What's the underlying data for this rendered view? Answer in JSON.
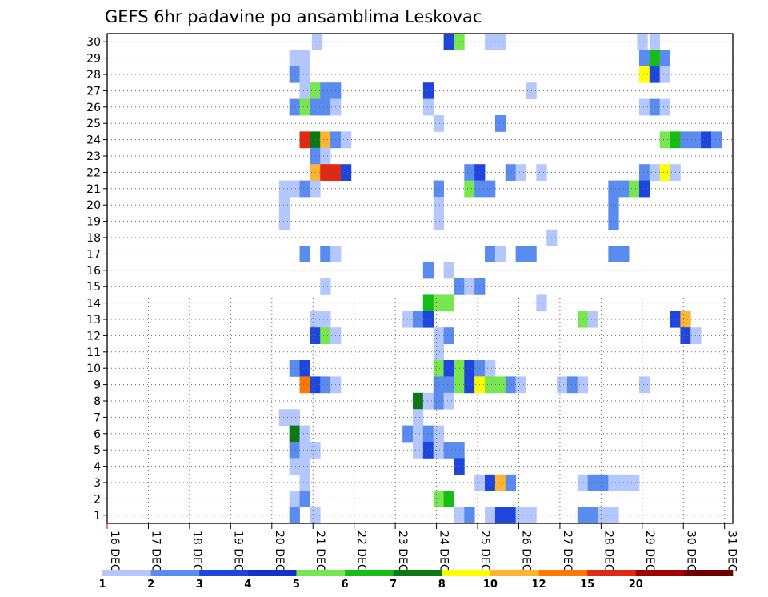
{
  "chart_data": {
    "type": "heatmap",
    "title": "GEFS 6hr padavine po ansamblima Leskovac",
    "xlabel": "",
    "ylabel": "",
    "x_ticks": [
      "16 DEC",
      "17 DEC",
      "18 DEC",
      "19 DEC",
      "20 DEC",
      "21 DEC",
      "22 DEC",
      "23 DEC",
      "24 DEC",
      "25 DEC",
      "26 DEC",
      "27 DEC",
      "28 DEC",
      "29 DEC",
      "30 DEC",
      "31 DEC"
    ],
    "x_range_days": [
      16,
      31.2
    ],
    "step_hours": 6,
    "y_ticks": [
      1,
      2,
      3,
      4,
      5,
      6,
      7,
      8,
      9,
      10,
      11,
      12,
      13,
      14,
      15,
      16,
      17,
      18,
      19,
      20,
      21,
      22,
      23,
      24,
      25,
      26,
      27,
      28,
      29,
      30
    ],
    "y_range": [
      0.5,
      30.5
    ],
    "grid": true,
    "colorbar": {
      "labels": [
        "1",
        "2",
        "3",
        "4",
        "5",
        "6",
        "7",
        "8",
        "10",
        "12",
        "15",
        "20"
      ],
      "levels": [
        1,
        2,
        3,
        4,
        5,
        6,
        7,
        8,
        10,
        12,
        15,
        20
      ],
      "colors": [
        "#b4c8ff",
        "#5a8cf0",
        "#1e46dc",
        "#1432c8",
        "#78e650",
        "#14be14",
        "#0a7814",
        "#ffff00",
        "#ffb432",
        "#ff7800",
        "#e12814",
        "#a00000",
        "#6e0000"
      ]
    },
    "cells": [
      [
        30,
        21.1,
        1
      ],
      [
        30,
        24.3,
        3
      ],
      [
        30,
        24.55,
        5
      ],
      [
        30,
        25.3,
        1
      ],
      [
        30,
        25.55,
        1
      ],
      [
        30,
        29.0,
        1
      ],
      [
        30,
        29.3,
        1
      ],
      [
        29,
        20.55,
        1
      ],
      [
        29,
        20.8,
        1
      ],
      [
        29,
        29.05,
        2
      ],
      [
        29,
        29.3,
        6
      ],
      [
        29,
        29.55,
        2
      ],
      [
        28,
        20.55,
        2
      ],
      [
        28,
        20.8,
        1
      ],
      [
        28,
        29.05,
        8
      ],
      [
        28,
        29.3,
        3
      ],
      [
        28,
        29.55,
        1
      ],
      [
        27,
        20.8,
        1
      ],
      [
        27,
        21.05,
        5
      ],
      [
        27,
        21.3,
        2
      ],
      [
        27,
        21.55,
        2
      ],
      [
        27,
        23.8,
        3
      ],
      [
        27,
        26.3,
        1
      ],
      [
        26,
        20.55,
        2
      ],
      [
        26,
        20.8,
        5
      ],
      [
        26,
        21.05,
        2
      ],
      [
        26,
        21.3,
        2
      ],
      [
        26,
        21.55,
        1
      ],
      [
        26,
        23.8,
        1
      ],
      [
        26,
        29.05,
        1
      ],
      [
        26,
        29.3,
        2
      ],
      [
        26,
        29.55,
        1
      ],
      [
        25,
        24.05,
        1
      ],
      [
        25,
        25.55,
        2
      ],
      [
        24,
        20.8,
        15
      ],
      [
        24,
        21.05,
        7
      ],
      [
        24,
        21.3,
        10
      ],
      [
        24,
        21.55,
        2
      ],
      [
        24,
        21.8,
        1
      ],
      [
        24,
        29.55,
        5
      ],
      [
        24,
        29.8,
        6
      ],
      [
        24,
        30.05,
        2
      ],
      [
        24,
        30.3,
        2
      ],
      [
        24,
        30.55,
        3
      ],
      [
        24,
        30.8,
        2
      ],
      [
        23,
        21.05,
        2
      ],
      [
        23,
        21.3,
        1
      ],
      [
        22,
        21.05,
        10
      ],
      [
        22,
        21.3,
        15
      ],
      [
        22,
        21.55,
        15
      ],
      [
        22,
        21.8,
        3
      ],
      [
        22,
        24.8,
        2
      ],
      [
        22,
        25.05,
        3
      ],
      [
        22,
        25.8,
        2
      ],
      [
        22,
        26.05,
        1
      ],
      [
        22,
        26.55,
        1
      ],
      [
        22,
        29.05,
        2
      ],
      [
        22,
        29.3,
        1
      ],
      [
        22,
        29.55,
        8
      ],
      [
        22,
        29.8,
        1
      ],
      [
        21,
        20.3,
        1
      ],
      [
        21,
        20.55,
        1
      ],
      [
        21,
        20.8,
        2
      ],
      [
        21,
        21.05,
        1
      ],
      [
        21,
        24.05,
        2
      ],
      [
        21,
        24.8,
        5
      ],
      [
        21,
        25.05,
        2
      ],
      [
        21,
        25.3,
        2
      ],
      [
        21,
        28.3,
        2
      ],
      [
        21,
        28.55,
        2
      ],
      [
        21,
        28.8,
        5
      ],
      [
        21,
        29.05,
        3
      ],
      [
        20,
        20.3,
        1
      ],
      [
        20,
        24.05,
        1
      ],
      [
        20,
        28.3,
        2
      ],
      [
        19,
        20.3,
        1
      ],
      [
        19,
        24.05,
        1
      ],
      [
        19,
        28.3,
        2
      ],
      [
        18,
        26.8,
        1
      ],
      [
        17,
        20.8,
        2
      ],
      [
        17,
        21.3,
        2
      ],
      [
        17,
        21.55,
        1
      ],
      [
        17,
        25.3,
        2
      ],
      [
        17,
        25.55,
        1
      ],
      [
        17,
        26.05,
        2
      ],
      [
        17,
        26.3,
        2
      ],
      [
        17,
        28.3,
        2
      ],
      [
        17,
        28.55,
        2
      ],
      [
        16,
        23.8,
        2
      ],
      [
        16,
        24.3,
        1
      ],
      [
        15,
        21.3,
        1
      ],
      [
        15,
        24.55,
        2
      ],
      [
        15,
        24.8,
        1
      ],
      [
        15,
        25.05,
        2
      ],
      [
        14,
        23.8,
        6
      ],
      [
        14,
        24.05,
        5
      ],
      [
        14,
        24.3,
        5
      ],
      [
        14,
        26.55,
        1
      ],
      [
        13,
        21.05,
        1
      ],
      [
        13,
        21.3,
        1
      ],
      [
        13,
        23.3,
        1
      ],
      [
        13,
        23.55,
        2
      ],
      [
        13,
        23.8,
        3
      ],
      [
        13,
        27.55,
        5
      ],
      [
        13,
        27.8,
        1
      ],
      [
        13,
        29.8,
        3
      ],
      [
        13,
        30.05,
        10
      ],
      [
        12,
        21.05,
        3
      ],
      [
        12,
        21.3,
        5
      ],
      [
        12,
        21.55,
        1
      ],
      [
        12,
        24.05,
        1
      ],
      [
        12,
        24.3,
        2
      ],
      [
        12,
        30.05,
        3
      ],
      [
        12,
        30.3,
        1
      ],
      [
        11,
        24.05,
        1
      ],
      [
        10,
        20.55,
        2
      ],
      [
        10,
        20.8,
        3
      ],
      [
        10,
        24.05,
        5
      ],
      [
        10,
        24.3,
        3
      ],
      [
        10,
        24.55,
        5
      ],
      [
        10,
        24.8,
        3
      ],
      [
        10,
        25.05,
        2
      ],
      [
        10,
        25.3,
        1
      ],
      [
        9,
        20.8,
        12
      ],
      [
        9,
        21.05,
        3
      ],
      [
        9,
        21.3,
        2
      ],
      [
        9,
        21.55,
        1
      ],
      [
        9,
        24.05,
        2
      ],
      [
        9,
        24.3,
        2
      ],
      [
        9,
        24.55,
        5
      ],
      [
        9,
        24.8,
        3
      ],
      [
        9,
        25.05,
        8
      ],
      [
        9,
        25.3,
        5
      ],
      [
        9,
        25.55,
        5
      ],
      [
        9,
        25.8,
        2
      ],
      [
        9,
        26.05,
        1
      ],
      [
        9,
        27.05,
        1
      ],
      [
        9,
        27.3,
        2
      ],
      [
        9,
        27.55,
        1
      ],
      [
        9,
        29.05,
        1
      ],
      [
        8,
        23.55,
        7
      ],
      [
        8,
        23.8,
        1
      ],
      [
        8,
        24.05,
        2
      ],
      [
        8,
        24.3,
        1
      ],
      [
        7,
        20.3,
        1
      ],
      [
        7,
        20.55,
        1
      ],
      [
        7,
        23.55,
        1
      ],
      [
        6,
        20.55,
        7
      ],
      [
        6,
        20.8,
        1
      ],
      [
        6,
        23.3,
        2
      ],
      [
        6,
        23.55,
        1
      ],
      [
        6,
        23.8,
        2
      ],
      [
        6,
        24.05,
        1
      ],
      [
        5,
        20.55,
        2
      ],
      [
        5,
        20.8,
        1
      ],
      [
        5,
        21.05,
        1
      ],
      [
        5,
        23.55,
        1
      ],
      [
        5,
        23.8,
        3
      ],
      [
        5,
        24.05,
        1
      ],
      [
        5,
        24.3,
        2
      ],
      [
        5,
        24.55,
        2
      ],
      [
        4,
        20.55,
        1
      ],
      [
        4,
        20.8,
        1
      ],
      [
        4,
        24.55,
        3
      ],
      [
        3,
        20.8,
        1
      ],
      [
        3,
        25.05,
        1
      ],
      [
        3,
        25.3,
        3
      ],
      [
        3,
        25.55,
        10
      ],
      [
        3,
        25.8,
        2
      ],
      [
        3,
        27.55,
        1
      ],
      [
        3,
        27.8,
        2
      ],
      [
        3,
        28.05,
        2
      ],
      [
        3,
        28.3,
        1
      ],
      [
        3,
        28.55,
        1
      ],
      [
        3,
        28.8,
        1
      ],
      [
        2,
        20.55,
        1
      ],
      [
        2,
        20.8,
        2
      ],
      [
        2,
        24.05,
        5
      ],
      [
        2,
        24.3,
        6
      ],
      [
        1,
        20.55,
        2
      ],
      [
        1,
        21.05,
        1
      ],
      [
        1,
        24.55,
        1
      ],
      [
        1,
        24.8,
        2
      ],
      [
        1,
        25.3,
        1
      ],
      [
        1,
        25.55,
        3
      ],
      [
        1,
        25.8,
        3
      ],
      [
        1,
        26.05,
        1
      ],
      [
        1,
        26.3,
        1
      ],
      [
        1,
        27.55,
        2
      ],
      [
        1,
        27.8,
        2
      ],
      [
        1,
        28.05,
        1
      ],
      [
        1,
        28.3,
        1
      ]
    ]
  }
}
